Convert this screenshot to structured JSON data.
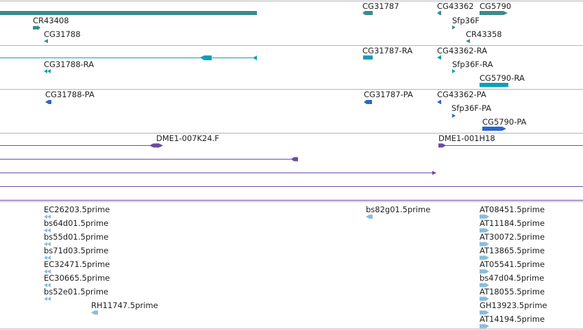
{
  "colors": {
    "gene": "#3a8c8c",
    "transcript": "#0aa0bc",
    "protein": "#2a66cc",
    "clone": "#6a4aa8",
    "est": "#8abcdc",
    "separator": "#b4b4b4"
  },
  "tracks": {
    "gene": {
      "labels": [
        "CR43408",
        "CG31788",
        "CG31787",
        "CG43362",
        "CG5790",
        "Sfp36F",
        "CR43358"
      ]
    },
    "transcript": {
      "labels": [
        "CG31788-RA",
        "CG31787-RA",
        "CG43362-RA",
        "Sfp36F-RA",
        "CG5790-RA"
      ]
    },
    "protein": {
      "labels": [
        "CG31788-PA",
        "CG31787-PA",
        "CG43362-PA",
        "Sfp36F-PA",
        "CG5790-PA"
      ]
    },
    "clone": {
      "labels": [
        "DME1-007K24.F",
        "DME1-001H18"
      ]
    },
    "est": {
      "left_labels": [
        "EC26203.5prime",
        "bs64d01.5prime",
        "bs55d01.5prime",
        "bs71d03.5prime",
        "EC32471.5prime",
        "EC30665.5prime",
        "bs52e01.5prime",
        "RH11747.5prime"
      ],
      "middle_labels": [
        "bs82g01.5prime"
      ],
      "right_labels": [
        "AT08451.5prime",
        "AT11184.5prime",
        "AT30072.5prime",
        "AT13865.5prime",
        "AT05541.5prime",
        "bs47d04.5prime",
        "AT18055.5prime",
        "GH13923.5prime",
        "AT14194.5prime"
      ]
    }
  }
}
